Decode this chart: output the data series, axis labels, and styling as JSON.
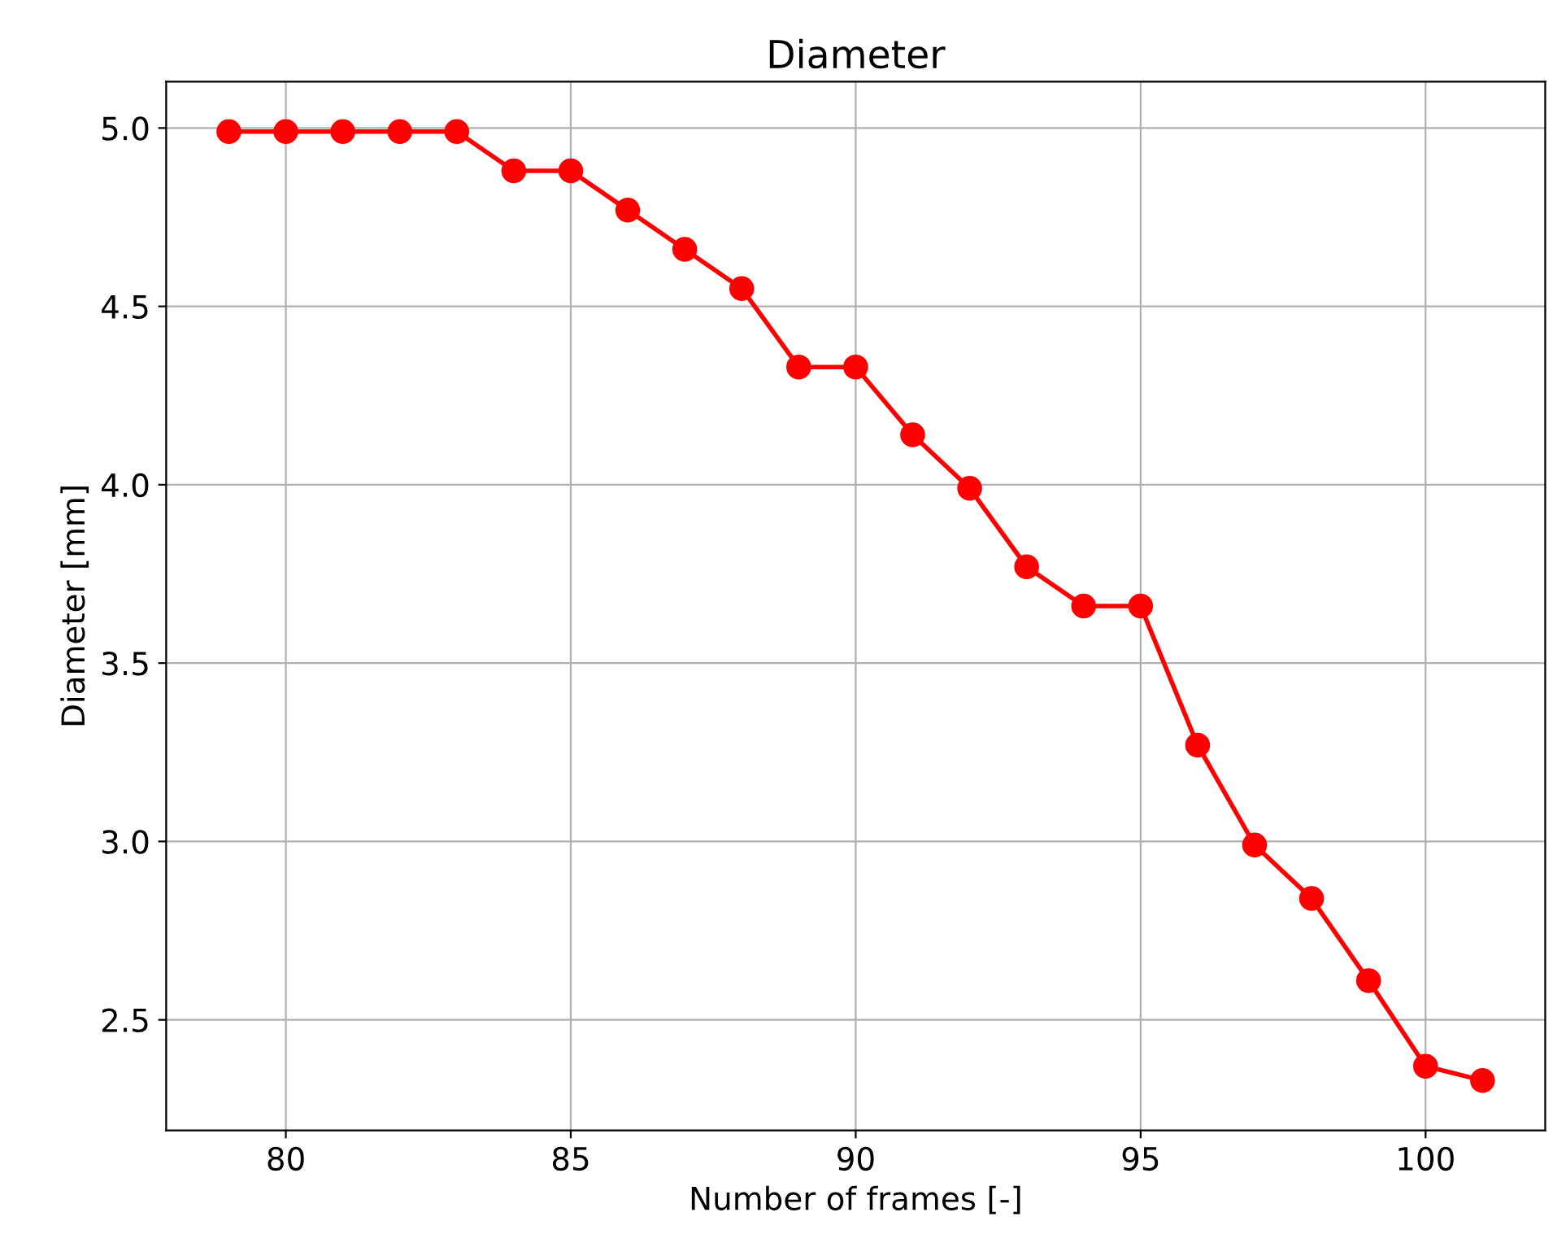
{
  "chart_data": {
    "type": "line",
    "title": "Diameter",
    "xlabel": "Number of frames [-]",
    "ylabel": "Diameter [mm]",
    "x": [
      79,
      80,
      81,
      82,
      83,
      84,
      85,
      86,
      87,
      88,
      89,
      90,
      91,
      92,
      93,
      94,
      95,
      96,
      97,
      98,
      99,
      100,
      101
    ],
    "series": [
      {
        "color": "#ff0000",
        "values": [
          4.99,
          4.99,
          4.99,
          4.99,
          4.99,
          4.88,
          4.88,
          4.77,
          4.66,
          4.55,
          4.33,
          4.33,
          4.14,
          3.99,
          3.77,
          3.66,
          3.66,
          3.27,
          2.99,
          2.84,
          2.61,
          2.37,
          2.33
        ]
      }
    ],
    "xlim": [
      77.9,
      102.1
    ],
    "xticks": [
      80,
      85,
      90,
      95,
      100
    ],
    "ylim": [
      2.19,
      5.13
    ],
    "yticks": [
      2.5,
      {
        "value": 3,
        "label": "3.0"
      },
      3.5,
      {
        "value": 4,
        "label": "4.0"
      },
      4.5,
      {
        "value": 5,
        "label": "5.0"
      }
    ],
    "grid": true,
    "marker": "circle",
    "line_style": "solid"
  }
}
